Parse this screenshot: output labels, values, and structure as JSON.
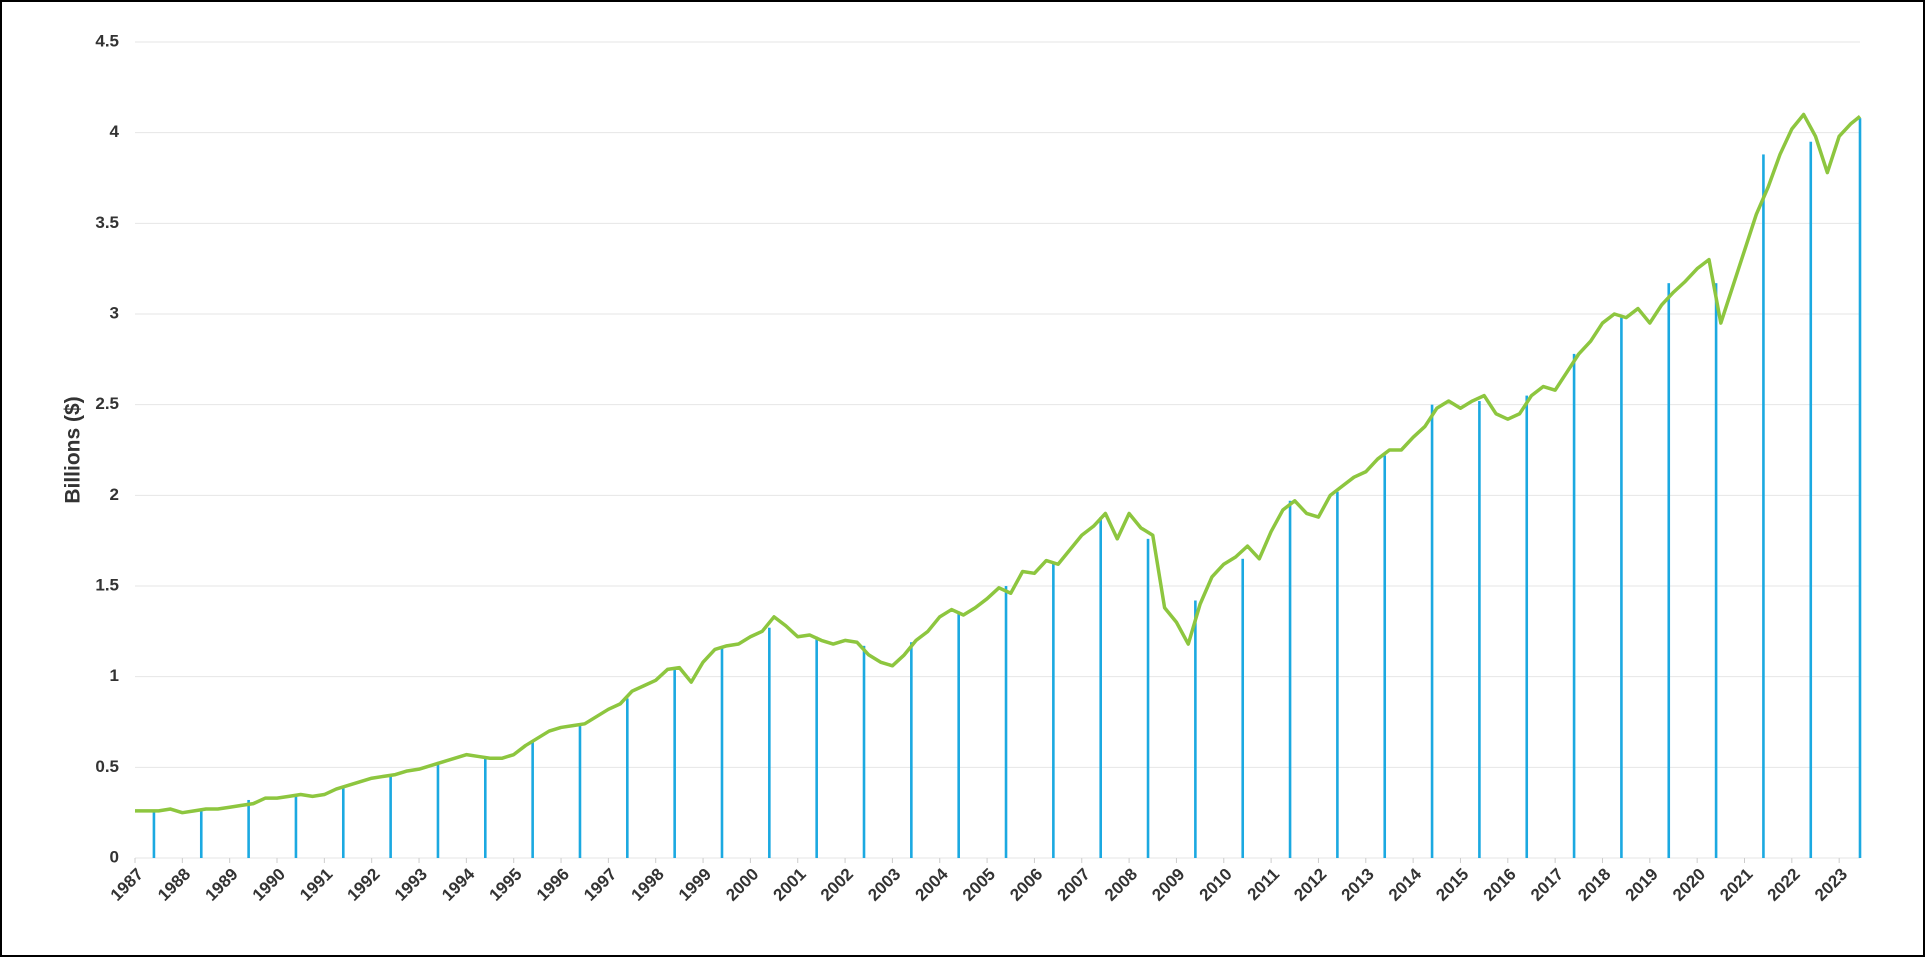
{
  "chart_data": {
    "type": "combo",
    "y_label": "Billions ($)",
    "xlim": [
      1987,
      2023.44
    ],
    "xticks": [
      1987,
      1988,
      1989,
      1990,
      1991,
      1992,
      1993,
      1994,
      1995,
      1996,
      1997,
      1998,
      1999,
      2000,
      2001,
      2002,
      2003,
      2004,
      2005,
      2006,
      2007,
      2008,
      2009,
      2010,
      2011,
      2012,
      2013,
      2014,
      2015,
      2016,
      2017,
      2018,
      2019,
      2020,
      2021,
      2022,
      2023
    ],
    "ylim": [
      0,
      4.5
    ],
    "yticks": [
      0,
      0.5,
      1,
      1.5,
      2,
      2.5,
      3,
      3.5,
      4,
      4.5
    ],
    "grid": true,
    "series": [
      {
        "type": "bar",
        "color": "#1ba9e1",
        "x": [
          1987.4,
          1988.4,
          1989.4,
          1990.4,
          1991.4,
          1992.4,
          1993.4,
          1994.4,
          1995.4,
          1996.4,
          1997.4,
          1998.4,
          1999.4,
          2000.4,
          2001.4,
          2002.4,
          2003.4,
          2004.4,
          2005.4,
          2006.4,
          2007.4,
          2008.4,
          2009.4,
          2010.4,
          2011.4,
          2012.4,
          2013.4,
          2014.4,
          2015.4,
          2016.4,
          2017.4,
          2018.4,
          2019.4,
          2020.4,
          2021.4,
          2022.4,
          2023.44
        ],
        "values": [
          0.26,
          0.27,
          0.32,
          0.35,
          0.39,
          0.46,
          0.53,
          0.55,
          0.64,
          0.73,
          0.88,
          1.04,
          1.16,
          1.27,
          1.22,
          1.17,
          1.19,
          1.36,
          1.5,
          1.63,
          1.88,
          1.76,
          1.42,
          1.65,
          1.97,
          2.02,
          2.22,
          2.5,
          2.52,
          2.55,
          2.78,
          2.98,
          3.17,
          3.17,
          3.88,
          3.95,
          4.08
        ]
      },
      {
        "type": "line",
        "color": "#8dc63f",
        "x": [
          1987,
          1987.25,
          1987.5,
          1987.75,
          1988,
          1988.25,
          1988.5,
          1988.75,
          1989,
          1989.25,
          1989.5,
          1989.75,
          1990,
          1990.25,
          1990.5,
          1990.75,
          1991,
          1991.25,
          1991.5,
          1991.75,
          1992,
          1992.25,
          1992.5,
          1992.75,
          1993,
          1993.25,
          1993.5,
          1993.75,
          1994,
          1994.25,
          1994.5,
          1994.75,
          1995,
          1995.25,
          1995.5,
          1995.75,
          1996,
          1996.25,
          1996.5,
          1996.75,
          1997,
          1997.25,
          1997.5,
          1997.75,
          1998,
          1998.25,
          1998.5,
          1998.75,
          1999,
          1999.25,
          1999.5,
          1999.75,
          2000,
          2000.25,
          2000.5,
          2000.75,
          2001,
          2001.25,
          2001.5,
          2001.75,
          2002,
          2002.25,
          2002.5,
          2002.75,
          2003,
          2003.25,
          2003.5,
          2003.75,
          2004,
          2004.25,
          2004.5,
          2004.75,
          2005,
          2005.25,
          2005.5,
          2005.75,
          2006,
          2006.25,
          2006.5,
          2006.75,
          2007,
          2007.25,
          2007.5,
          2007.75,
          2008,
          2008.25,
          2008.5,
          2008.75,
          2009,
          2009.25,
          2009.5,
          2009.75,
          2010,
          2010.25,
          2010.5,
          2010.75,
          2011,
          2011.25,
          2011.5,
          2011.75,
          2012,
          2012.25,
          2012.5,
          2012.75,
          2013,
          2013.25,
          2013.5,
          2013.75,
          2014,
          2014.25,
          2014.5,
          2014.75,
          2015,
          2015.25,
          2015.5,
          2015.75,
          2016,
          2016.25,
          2016.5,
          2016.75,
          2017,
          2017.25,
          2017.5,
          2017.75,
          2018,
          2018.25,
          2018.5,
          2018.75,
          2019,
          2019.25,
          2019.5,
          2019.75,
          2020,
          2020.25,
          2020.5,
          2020.75,
          2021,
          2021.25,
          2021.5,
          2021.75,
          2022,
          2022.25,
          2022.5,
          2022.75,
          2023,
          2023.25,
          2023.44
        ],
        "values": [
          0.26,
          0.26,
          0.26,
          0.27,
          0.25,
          0.26,
          0.27,
          0.27,
          0.28,
          0.29,
          0.3,
          0.33,
          0.33,
          0.34,
          0.35,
          0.34,
          0.35,
          0.38,
          0.4,
          0.42,
          0.44,
          0.45,
          0.46,
          0.48,
          0.49,
          0.51,
          0.53,
          0.55,
          0.57,
          0.56,
          0.55,
          0.55,
          0.57,
          0.62,
          0.66,
          0.7,
          0.72,
          0.73,
          0.74,
          0.78,
          0.82,
          0.85,
          0.92,
          0.95,
          0.98,
          1.04,
          1.05,
          0.97,
          1.08,
          1.15,
          1.17,
          1.18,
          1.22,
          1.25,
          1.33,
          1.28,
          1.22,
          1.23,
          1.2,
          1.18,
          1.2,
          1.19,
          1.12,
          1.08,
          1.06,
          1.12,
          1.2,
          1.25,
          1.33,
          1.37,
          1.34,
          1.38,
          1.43,
          1.49,
          1.46,
          1.58,
          1.57,
          1.64,
          1.62,
          1.7,
          1.78,
          1.83,
          1.9,
          1.76,
          1.9,
          1.82,
          1.78,
          1.38,
          1.3,
          1.18,
          1.4,
          1.55,
          1.62,
          1.66,
          1.72,
          1.65,
          1.8,
          1.92,
          1.97,
          1.9,
          1.88,
          2,
          2.05,
          2.1,
          2.13,
          2.2,
          2.25,
          2.25,
          2.32,
          2.38,
          2.48,
          2.52,
          2.48,
          2.52,
          2.55,
          2.45,
          2.42,
          2.45,
          2.55,
          2.6,
          2.58,
          2.68,
          2.78,
          2.85,
          2.95,
          3,
          2.98,
          3.03,
          2.95,
          3.05,
          3.12,
          3.18,
          3.25,
          3.3,
          2.95,
          3.15,
          3.35,
          3.55,
          3.7,
          3.88,
          4.02,
          4.1,
          3.98,
          3.78,
          3.98,
          4.05,
          4.09
        ]
      }
    ]
  }
}
